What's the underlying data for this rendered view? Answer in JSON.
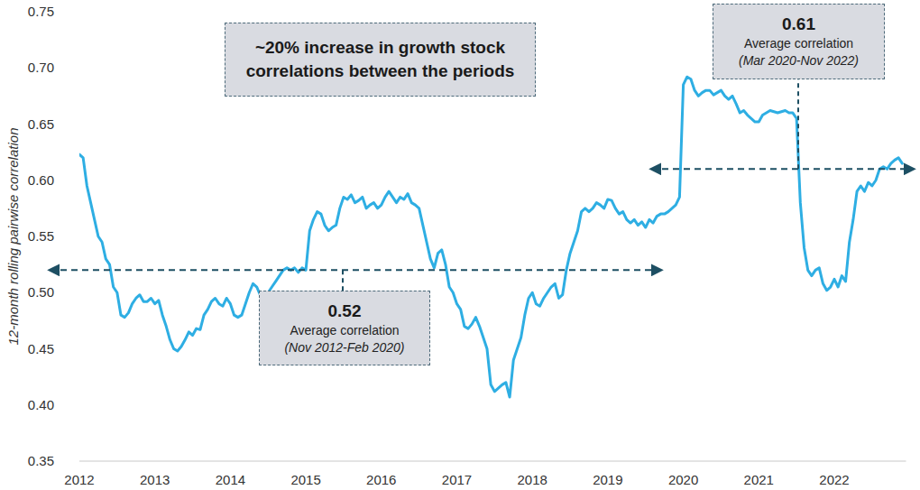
{
  "chart_data": {
    "type": "line",
    "y_label": "12-month rolling pairwise correlation",
    "color": "#2eaee3",
    "grid": false,
    "xlim": [
      2012,
      2022.95
    ],
    "xticks": [
      2012,
      2013,
      2014,
      2015,
      2016,
      2017,
      2018,
      2019,
      2020,
      2021,
      2022
    ],
    "ylim": [
      0.35,
      0.75
    ],
    "yticks": [
      0.35,
      {
        "value": 0.4,
        "label": "0.40"
      },
      0.45,
      {
        "value": 0.5,
        "label": "0.50"
      },
      0.55,
      {
        "value": 0.6,
        "label": "0.60"
      },
      0.65,
      {
        "value": 0.7,
        "label": "0.70"
      },
      0.75
    ],
    "x": [
      2012,
      2012.05,
      2012.1,
      2012.15,
      2012.2,
      2012.25,
      2012.3,
      2012.35,
      2012.4,
      2012.45,
      2012.5,
      2012.55,
      2012.6,
      2012.65,
      2012.7,
      2012.75,
      2012.8,
      2012.85,
      2012.9,
      2012.95,
      2013,
      2013.05,
      2013.1,
      2013.15,
      2013.2,
      2013.25,
      2013.3,
      2013.35,
      2013.4,
      2013.45,
      2013.5,
      2013.55,
      2013.6,
      2013.65,
      2013.7,
      2013.75,
      2013.8,
      2013.85,
      2013.9,
      2013.95,
      2014,
      2014.05,
      2014.1,
      2014.15,
      2014.2,
      2014.25,
      2014.3,
      2014.35,
      2014.4,
      2014.45,
      2014.5,
      2014.55,
      2014.6,
      2014.65,
      2014.7,
      2014.75,
      2014.8,
      2014.85,
      2014.9,
      2014.95,
      2015,
      2015.05,
      2015.1,
      2015.15,
      2015.2,
      2015.25,
      2015.3,
      2015.35,
      2015.4,
      2015.45,
      2015.5,
      2015.55,
      2015.6,
      2015.65,
      2015.7,
      2015.75,
      2015.8,
      2015.85,
      2015.9,
      2015.95,
      2016,
      2016.05,
      2016.1,
      2016.15,
      2016.2,
      2016.25,
      2016.3,
      2016.35,
      2016.4,
      2016.45,
      2016.5,
      2016.55,
      2016.6,
      2016.65,
      2016.7,
      2016.75,
      2016.8,
      2016.85,
      2016.9,
      2016.95,
      2017,
      2017.05,
      2017.1,
      2017.15,
      2017.2,
      2017.25,
      2017.3,
      2017.35,
      2017.4,
      2017.45,
      2017.5,
      2017.55,
      2017.6,
      2017.65,
      2017.7,
      2017.75,
      2017.8,
      2017.85,
      2017.9,
      2017.95,
      2018,
      2018.05,
      2018.1,
      2018.15,
      2018.2,
      2018.25,
      2018.3,
      2018.35,
      2018.4,
      2018.45,
      2018.5,
      2018.55,
      2018.6,
      2018.65,
      2018.7,
      2018.75,
      2018.8,
      2018.85,
      2018.9,
      2018.95,
      2019,
      2019.05,
      2019.1,
      2019.15,
      2019.2,
      2019.25,
      2019.3,
      2019.35,
      2019.4,
      2019.45,
      2019.5,
      2019.55,
      2019.6,
      2019.65,
      2019.7,
      2019.75,
      2019.8,
      2019.85,
      2019.9,
      2019.95,
      2020,
      2020.05,
      2020.1,
      2020.15,
      2020.2,
      2020.25,
      2020.3,
      2020.35,
      2020.4,
      2020.45,
      2020.5,
      2020.55,
      2020.6,
      2020.65,
      2020.7,
      2020.75,
      2020.8,
      2020.85,
      2020.9,
      2020.95,
      2021,
      2021.05,
      2021.1,
      2021.15,
      2021.2,
      2021.25,
      2021.3,
      2021.35,
      2021.4,
      2021.45,
      2021.5,
      2021.55,
      2021.6,
      2021.65,
      2021.7,
      2021.75,
      2021.8,
      2021.85,
      2021.9,
      2021.95,
      2022,
      2022.05,
      2022.1,
      2022.15,
      2022.2,
      2022.25,
      2022.3,
      2022.35,
      2022.4,
      2022.45,
      2022.5,
      2022.55,
      2022.6,
      2022.65,
      2022.7,
      2022.75,
      2022.8,
      2022.85,
      2022.9
    ],
    "values": [
      0.623,
      0.62,
      0.595,
      0.58,
      0.565,
      0.55,
      0.545,
      0.53,
      0.525,
      0.505,
      0.5,
      0.48,
      0.478,
      0.482,
      0.49,
      0.495,
      0.498,
      0.492,
      0.492,
      0.495,
      0.49,
      0.493,
      0.48,
      0.47,
      0.458,
      0.45,
      0.448,
      0.452,
      0.458,
      0.465,
      0.462,
      0.468,
      0.467,
      0.48,
      0.485,
      0.492,
      0.495,
      0.49,
      0.488,
      0.495,
      0.49,
      0.48,
      0.478,
      0.48,
      0.49,
      0.5,
      0.508,
      0.505,
      0.497,
      0.495,
      0.5,
      0.505,
      0.51,
      0.515,
      0.52,
      0.522,
      0.52,
      0.522,
      0.518,
      0.522,
      0.52,
      0.555,
      0.565,
      0.572,
      0.57,
      0.56,
      0.555,
      0.558,
      0.56,
      0.575,
      0.585,
      0.583,
      0.587,
      0.58,
      0.582,
      0.585,
      0.575,
      0.578,
      0.58,
      0.575,
      0.578,
      0.585,
      0.59,
      0.585,
      0.58,
      0.585,
      0.583,
      0.588,
      0.58,
      0.578,
      0.575,
      0.56,
      0.545,
      0.53,
      0.522,
      0.535,
      0.538,
      0.525,
      0.505,
      0.5,
      0.49,
      0.485,
      0.47,
      0.468,
      0.472,
      0.478,
      0.47,
      0.46,
      0.45,
      0.418,
      0.412,
      0.415,
      0.418,
      0.42,
      0.407,
      0.44,
      0.45,
      0.46,
      0.48,
      0.495,
      0.5,
      0.49,
      0.488,
      0.495,
      0.5,
      0.505,
      0.508,
      0.495,
      0.498,
      0.52,
      0.535,
      0.545,
      0.555,
      0.572,
      0.575,
      0.572,
      0.575,
      0.58,
      0.578,
      0.575,
      0.583,
      0.582,
      0.575,
      0.57,
      0.572,
      0.565,
      0.562,
      0.565,
      0.56,
      0.563,
      0.558,
      0.565,
      0.562,
      0.568,
      0.57,
      0.57,
      0.572,
      0.575,
      0.578,
      0.585,
      0.685,
      0.692,
      0.69,
      0.68,
      0.675,
      0.678,
      0.68,
      0.68,
      0.676,
      0.678,
      0.68,
      0.675,
      0.672,
      0.675,
      0.668,
      0.66,
      0.662,
      0.658,
      0.655,
      0.652,
      0.652,
      0.658,
      0.66,
      0.662,
      0.661,
      0.66,
      0.661,
      0.662,
      0.66,
      0.66,
      0.655,
      0.58,
      0.54,
      0.52,
      0.515,
      0.52,
      0.522,
      0.508,
      0.502,
      0.505,
      0.512,
      0.505,
      0.515,
      0.51,
      0.545,
      0.565,
      0.59,
      0.595,
      0.59,
      0.598,
      0.595,
      0.6,
      0.61,
      0.612,
      0.61,
      0.615,
      0.618,
      0.62,
      0.615
    ],
    "annotations": [
      {
        "text": "~20% increase in growth stock correlations between the periods"
      },
      {
        "value": 0.52,
        "label": "0.52",
        "text": "Average correlation",
        "period": "(Nov 2012-Feb 2020)"
      },
      {
        "value": 0.61,
        "label": "0.61",
        "text": "Average correlation",
        "period": "(Mar 2020-Nov 2022)"
      }
    ]
  }
}
